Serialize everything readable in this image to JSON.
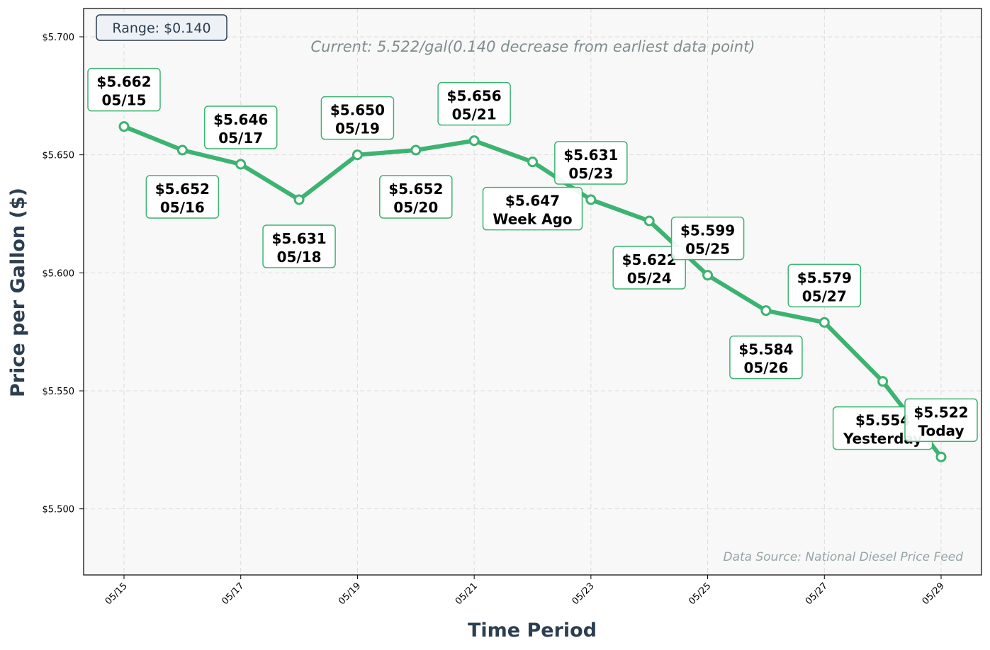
{
  "chart_data": {
    "type": "line",
    "title": "",
    "xlabel": "Time Period",
    "ylabel": "Price per Gallon ($)",
    "ylim": [
      5.472,
      5.712
    ],
    "y_ticks": [
      "$5.500",
      "$5.550",
      "$5.600",
      "$5.650",
      "$5.700"
    ],
    "x_ticks": [
      "05/15",
      "05/17",
      "05/19",
      "05/21",
      "05/23",
      "05/25",
      "05/27",
      "05/29"
    ],
    "grid": true,
    "line_color": "#3cb371",
    "points": [
      {
        "date": "05/15",
        "value": 5.662,
        "price_label": "$5.662",
        "date_label": "05/15",
        "label_pos": "above"
      },
      {
        "date": "05/16",
        "value": 5.652,
        "price_label": "$5.652",
        "date_label": "05/16",
        "label_pos": "below"
      },
      {
        "date": "05/17",
        "value": 5.646,
        "price_label": "$5.646",
        "date_label": "05/17",
        "label_pos": "above"
      },
      {
        "date": "05/18",
        "value": 5.631,
        "price_label": "$5.631",
        "date_label": "05/18",
        "label_pos": "below"
      },
      {
        "date": "05/19",
        "value": 5.65,
        "price_label": "$5.650",
        "date_label": "05/19",
        "label_pos": "above"
      },
      {
        "date": "05/20",
        "value": 5.652,
        "price_label": "$5.652",
        "date_label": "05/20",
        "label_pos": "below"
      },
      {
        "date": "05/21",
        "value": 5.656,
        "price_label": "$5.656",
        "date_label": "05/21",
        "label_pos": "above"
      },
      {
        "date": "05/22",
        "value": 5.647,
        "price_label": "$5.647",
        "date_label": "Week Ago",
        "label_pos": "below"
      },
      {
        "date": "05/23",
        "value": 5.631,
        "price_label": "$5.631",
        "date_label": "05/23",
        "label_pos": "above"
      },
      {
        "date": "05/24",
        "value": 5.622,
        "price_label": "$5.622",
        "date_label": "05/24",
        "label_pos": "below"
      },
      {
        "date": "05/25",
        "value": 5.599,
        "price_label": "$5.599",
        "date_label": "05/25",
        "label_pos": "above"
      },
      {
        "date": "05/26",
        "value": 5.584,
        "price_label": "$5.584",
        "date_label": "05/26",
        "label_pos": "below"
      },
      {
        "date": "05/27",
        "value": 5.579,
        "price_label": "$5.579",
        "date_label": "05/27",
        "label_pos": "above"
      },
      {
        "date": "05/28",
        "value": 5.554,
        "price_label": "$5.554",
        "date_label": "Yesterday",
        "label_pos": "below"
      },
      {
        "date": "05/29",
        "value": 5.522,
        "price_label": "$5.522",
        "date_label": "Today",
        "label_pos": "above"
      }
    ],
    "annotations": {
      "range": "Range: $0.140",
      "current": "Current: 5.522/gal(0.140 decrease from earliest data point)",
      "source": "Data Source: National Diesel Price Feed"
    }
  }
}
